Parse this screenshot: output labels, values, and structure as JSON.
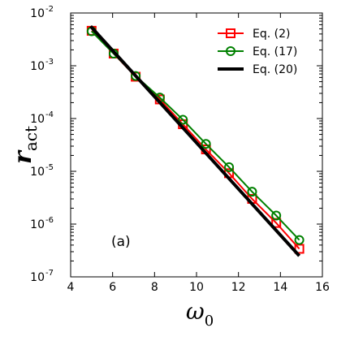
{
  "chart_data": {
    "type": "line",
    "title": "",
    "xlabel": {
      "symbol": "ω",
      "subscript": "0"
    },
    "ylabel": {
      "symbol": "r",
      "subscript": "act"
    },
    "xlim": [
      4,
      16
    ],
    "ylim": [
      1e-07,
      0.01
    ],
    "yscale": "log",
    "grid": false,
    "legend_position": "top-right",
    "x_ticks": [
      4,
      6,
      8,
      10,
      12,
      14,
      16
    ],
    "y_ticks": [
      {
        "base": "10",
        "exp": "-7",
        "value": 1e-07
      },
      {
        "base": "10",
        "exp": "-6",
        "value": 1e-06
      },
      {
        "base": "10",
        "exp": "-5",
        "value": 1e-05
      },
      {
        "base": "10",
        "exp": "-4",
        "value": 0.0001
      },
      {
        "base": "10",
        "exp": "-3",
        "value": 0.001
      },
      {
        "base": "10",
        "exp": "-2",
        "value": 0.01
      }
    ],
    "annotation": "(a)",
    "series": [
      {
        "name": "Eq. (2)",
        "color": "#ff0000",
        "marker": "square",
        "x": [
          5.0,
          6.05,
          7.1,
          8.25,
          9.35,
          10.45,
          11.55,
          12.65,
          13.8,
          14.9
        ],
        "y": [
          0.0046,
          0.0017,
          0.00062,
          0.00023,
          7.8e-05,
          2.6e-05,
          9.2e-06,
          3e-06,
          1.05e-06,
          3.4e-07
        ]
      },
      {
        "name": "Eq. (17)",
        "color": "#008000",
        "marker": "circle",
        "x": [
          5.0,
          6.05,
          7.1,
          8.25,
          9.35,
          10.45,
          11.55,
          12.65,
          13.8,
          14.9
        ],
        "y": [
          0.0045,
          0.0017,
          0.00064,
          0.00025,
          9.5e-05,
          3.3e-05,
          1.2e-05,
          4.1e-06,
          1.45e-06,
          5e-07
        ]
      },
      {
        "name": "Eq. (20)",
        "color": "#000000",
        "marker": "none",
        "x": [
          4.95,
          14.9
        ],
        "y": [
          0.0056,
          2.5e-07
        ]
      }
    ]
  }
}
